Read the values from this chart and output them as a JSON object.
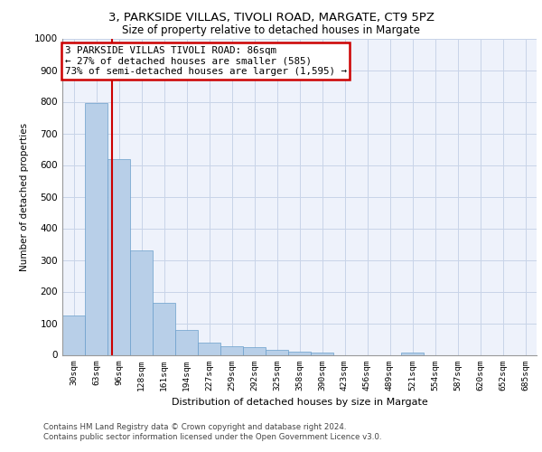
{
  "title_line1": "3, PARKSIDE VILLAS, TIVOLI ROAD, MARGATE, CT9 5PZ",
  "title_line2": "Size of property relative to detached houses in Margate",
  "xlabel": "Distribution of detached houses by size in Margate",
  "ylabel": "Number of detached properties",
  "categories": [
    "30sqm",
    "63sqm",
    "96sqm",
    "128sqm",
    "161sqm",
    "194sqm",
    "227sqm",
    "259sqm",
    "292sqm",
    "325sqm",
    "358sqm",
    "390sqm",
    "423sqm",
    "456sqm",
    "489sqm",
    "521sqm",
    "554sqm",
    "587sqm",
    "620sqm",
    "652sqm",
    "685sqm"
  ],
  "values": [
    125,
    795,
    620,
    330,
    163,
    80,
    40,
    26,
    24,
    15,
    10,
    7,
    0,
    0,
    0,
    8,
    0,
    0,
    0,
    0,
    0
  ],
  "bar_color": "#b8cfe8",
  "bar_edge_color": "#6a9ecb",
  "annotation_text": "3 PARKSIDE VILLAS TIVOLI ROAD: 86sqm\n← 27% of detached houses are smaller (585)\n73% of semi-detached houses are larger (1,595) →",
  "annotation_box_color": "#ffffff",
  "annotation_box_edge_color": "#cc0000",
  "vline_color": "#cc0000",
  "grid_color": "#c8d4e8",
  "background_color": "#eef2fb",
  "footer_text": "Contains HM Land Registry data © Crown copyright and database right 2024.\nContains public sector information licensed under the Open Government Licence v3.0.",
  "ylim": [
    0,
    1000
  ],
  "yticks": [
    0,
    100,
    200,
    300,
    400,
    500,
    600,
    700,
    800,
    900,
    1000
  ]
}
